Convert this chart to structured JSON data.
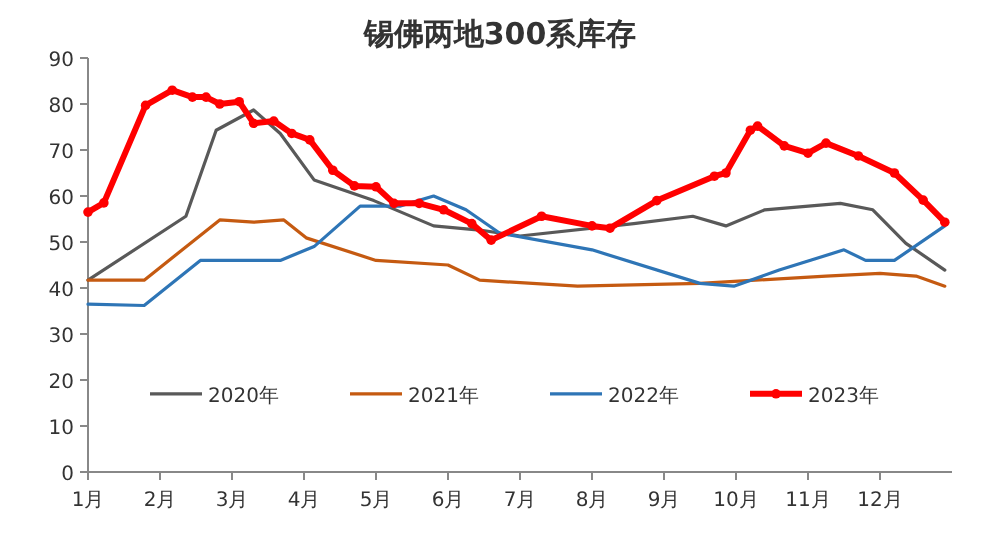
{
  "chart_data": {
    "type": "line",
    "title": "锡佛两地300系库存",
    "xlim": [
      1,
      13
    ],
    "xticks": [
      {
        "value": 1,
        "label": "1月"
      },
      {
        "value": 2,
        "label": "2月"
      },
      {
        "value": 3,
        "label": "3月"
      },
      {
        "value": 4,
        "label": "4月"
      },
      {
        "value": 5,
        "label": "5月"
      },
      {
        "value": 6,
        "label": "6月"
      },
      {
        "value": 7,
        "label": "7月"
      },
      {
        "value": 8,
        "label": "8月"
      },
      {
        "value": 9,
        "label": "9月"
      },
      {
        "value": 10,
        "label": "10月"
      },
      {
        "value": 11,
        "label": "11月"
      },
      {
        "value": 12,
        "label": "12月"
      }
    ],
    "ylim": [
      0,
      90
    ],
    "yticks": [
      0,
      10,
      20,
      30,
      40,
      50,
      60,
      70,
      80,
      90
    ],
    "grid": false,
    "legend": "bottom",
    "series": [
      {
        "name": "2020年",
        "color": "#595959",
        "marker": "none",
        "x": [
          1,
          2.36,
          2.78,
          3.3,
          3.67,
          4.14,
          4.97,
          5.8,
          6.44,
          7.0,
          8.58,
          9.4,
          9.86,
          10.4,
          11.45,
          11.9,
          12.36,
          12.9
        ],
        "values": [
          41.7,
          55.6,
          74.3,
          78.7,
          73.6,
          63.5,
          59,
          53.5,
          52.6,
          51.3,
          54,
          55.6,
          53.5,
          57,
          58.4,
          57,
          49.7,
          43.9
        ]
      },
      {
        "name": "2021年",
        "color": "#c55a11",
        "marker": "none",
        "x": [
          1,
          1.78,
          2.83,
          3.3,
          3.72,
          4.03,
          5.0,
          6.0,
          6.44,
          7.8,
          9.5,
          11.25,
          12.0,
          12.5,
          12.9
        ],
        "values": [
          41.7,
          41.7,
          54.8,
          54.3,
          54.8,
          50.9,
          46,
          45,
          41.7,
          40.4,
          41,
          42.6,
          43.2,
          42.6,
          40.4
        ]
      },
      {
        "name": "2022年",
        "color": "#2e75b6",
        "marker": "none",
        "x": [
          1,
          1.78,
          2.56,
          3.03,
          3.67,
          4.14,
          4.78,
          5.33,
          5.8,
          6.25,
          6.72,
          8.0,
          9.5,
          9.97,
          10.6,
          11.5,
          11.8,
          12.2,
          12.9
        ],
        "values": [
          36.5,
          36.2,
          46,
          46,
          46,
          49,
          57.8,
          57.8,
          60,
          57,
          51.9,
          48.3,
          41,
          40.4,
          43.9,
          48.3,
          46,
          46,
          53.5
        ]
      },
      {
        "name": "2023年",
        "color": "#ff0000",
        "marker": "circle",
        "x": [
          1,
          1.22,
          1.8,
          2.17,
          2.45,
          2.64,
          2.83,
          3.1,
          3.3,
          3.58,
          3.83,
          4.08,
          4.4,
          4.7,
          5.0,
          5.25,
          5.6,
          5.94,
          6.33,
          6.6,
          7.3,
          8.0,
          8.25,
          8.9,
          9.7,
          9.86,
          10.2,
          10.3,
          10.67,
          11.0,
          11.25,
          11.7,
          12.2,
          12.6,
          12.9
        ],
        "values": [
          56.5,
          58.5,
          79.7,
          83,
          81.5,
          81.5,
          80,
          80.5,
          75.8,
          76.3,
          73.6,
          72.2,
          65.6,
          62.2,
          62,
          58.4,
          58.4,
          57,
          54,
          50.4,
          55.6,
          53.5,
          53,
          59,
          64.3,
          65,
          74.3,
          75.2,
          70.9,
          69.3,
          71.5,
          68.7,
          65,
          59.1,
          54.3
        ]
      }
    ]
  }
}
